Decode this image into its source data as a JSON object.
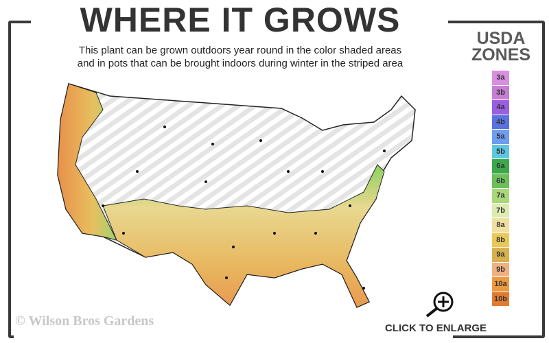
{
  "title": "WHERE IT GROWS",
  "subtitle_line1": "This plant can be grown outdoors year round in the color shaded areas",
  "subtitle_line2": "and in pots that can be brought indoors during winter in the striped area",
  "legend": {
    "title1": "USDA",
    "title2": "ZONES",
    "zones": [
      {
        "label": "3a",
        "color": "#d98ee0"
      },
      {
        "label": "3b",
        "color": "#c67ed4"
      },
      {
        "label": "4a",
        "color": "#9a5ee0"
      },
      {
        "label": "4b",
        "color": "#5a72e0"
      },
      {
        "label": "5a",
        "color": "#6e9cf0"
      },
      {
        "label": "5b",
        "color": "#5ec6e0"
      },
      {
        "label": "6a",
        "color": "#3ca84a"
      },
      {
        "label": "6b",
        "color": "#6cc05a"
      },
      {
        "label": "7a",
        "color": "#a8d87a"
      },
      {
        "label": "7b",
        "color": "#dcebb0"
      },
      {
        "label": "8a",
        "color": "#f0e0a0"
      },
      {
        "label": "8b",
        "color": "#e8c858"
      },
      {
        "label": "9a",
        "color": "#d8b050"
      },
      {
        "label": "9b",
        "color": "#f0b080"
      },
      {
        "label": "10a",
        "color": "#ec9a40"
      },
      {
        "label": "10b",
        "color": "#e07c30"
      }
    ]
  },
  "copyright": "© Wilson Bros Gardens",
  "enlarge_label": "CLICK TO ENLARGE",
  "icons": {
    "enlarge": "zoom-in-magnifier-icon"
  }
}
